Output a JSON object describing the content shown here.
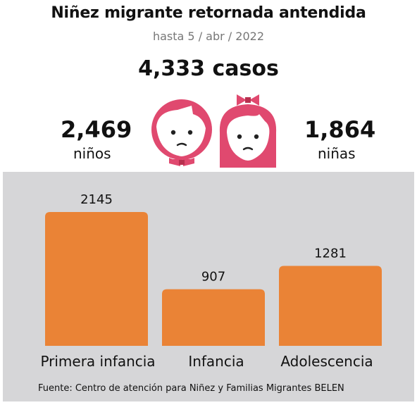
{
  "header": {
    "title": "Niñez migrante retornada antendida",
    "subtitle": "hasta 5 / abr / 2022",
    "total": "4,333 casos"
  },
  "stats": {
    "boys": {
      "value": "2,469",
      "label": "niños"
    },
    "girls": {
      "value": "1,864",
      "label": "niñas"
    }
  },
  "icons": {
    "boy": "boy-face-icon",
    "girl": "girl-face-icon"
  },
  "colors": {
    "bar": "#ea8336",
    "face": "#e0496f",
    "panel": "#d6d6d8"
  },
  "chart_data": {
    "type": "bar",
    "categories": [
      "Primera infancia",
      "Infancia",
      "Adolescencia"
    ],
    "values": [
      2145,
      907,
      1281
    ],
    "value_labels": [
      "2145",
      "907",
      "1281"
    ],
    "grid": false
  },
  "footer": {
    "source": "Fuente: Centro de atención para Niñez y Familias Migrantes BELEN"
  }
}
